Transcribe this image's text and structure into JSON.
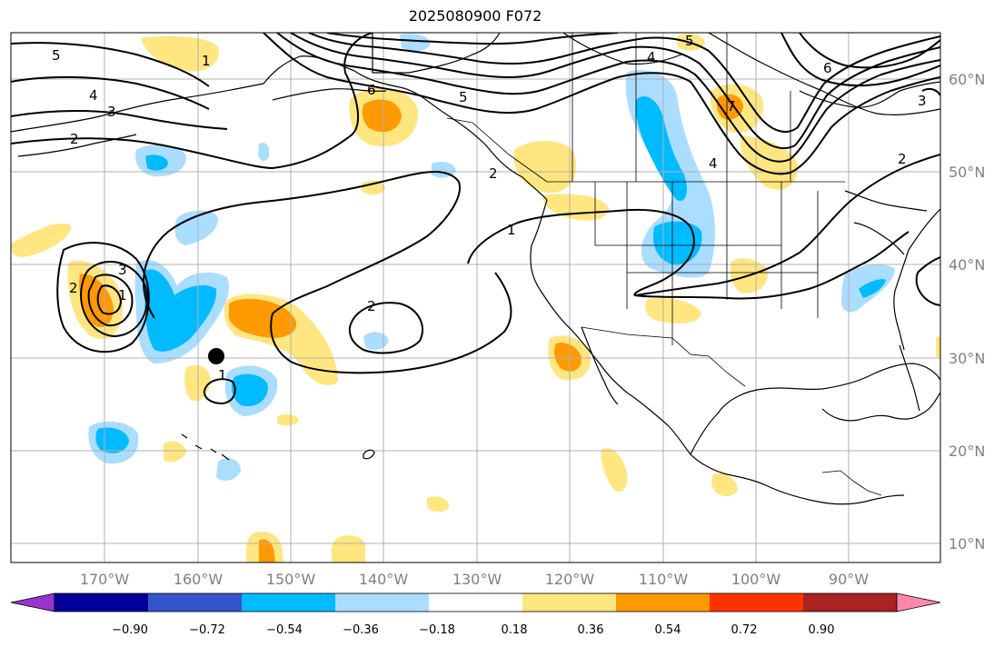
{
  "title": "2025080900 F072",
  "map": {
    "lat_labels": [
      "60°N",
      "50°N",
      "40°N",
      "30°N",
      "20°N",
      "10°N"
    ],
    "lon_labels": [
      "170°W",
      "160°W",
      "150°W",
      "140°W",
      "130°W",
      "120°W",
      "110°W",
      "100°W",
      "90°W"
    ],
    "contour_labels": [
      "5",
      "4",
      "3",
      "2",
      "1",
      "3",
      "2",
      "1",
      "1",
      "2",
      "1",
      "2",
      "4",
      "5",
      "6",
      "6",
      "7",
      "4",
      "5",
      "3",
      "2"
    ],
    "station_marker": "black-dot"
  },
  "colorbar": {
    "tick_labels": [
      "−0.90",
      "−0.72",
      "−0.54",
      "−0.36",
      "−0.18",
      "0.18",
      "0.36",
      "0.54",
      "0.72",
      "0.90"
    ],
    "colors": [
      "#9933cc",
      "#000099",
      "#3355cc",
      "#00bbff",
      "#aaddff",
      "#ffffff",
      "#ffe680",
      "#ff9900",
      "#ff3300",
      "#aa2222",
      "#ff88aa"
    ]
  }
}
